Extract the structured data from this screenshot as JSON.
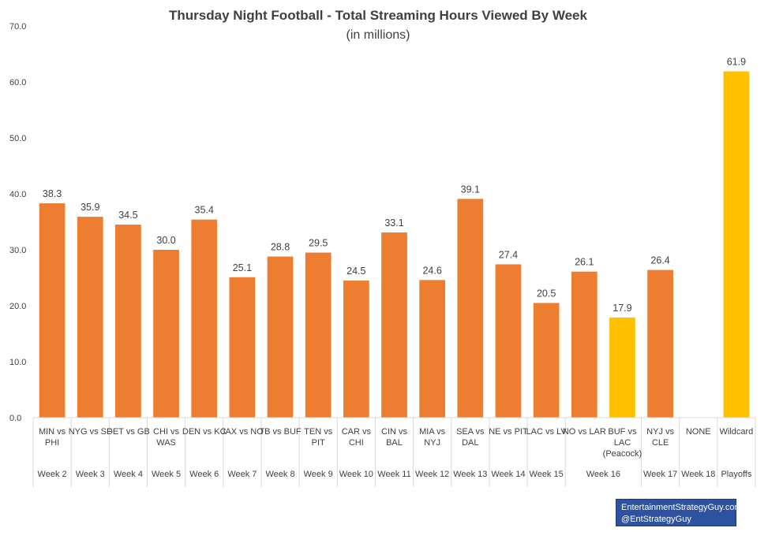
{
  "chart_data": {
    "type": "bar",
    "title": "Thursday Night Football - Total Streaming Hours Viewed By Week",
    "subtitle": "(in millions)",
    "ylim": [
      0,
      70
    ],
    "yticks": [
      "0.0",
      "10.0",
      "20.0",
      "30.0",
      "40.0",
      "50.0",
      "60.0",
      "70.0"
    ],
    "grid": false,
    "categories": [
      [
        "MIN vs",
        "PHI"
      ],
      [
        "NYG vs SF"
      ],
      [
        "DET vs GB"
      ],
      [
        "CHI vs",
        "WAS"
      ],
      [
        "DEN vs KC"
      ],
      [
        "JAX vs NO"
      ],
      [
        "TB vs BUF"
      ],
      [
        "TEN vs",
        "PIT"
      ],
      [
        "CAR vs",
        "CHI"
      ],
      [
        "CIN vs",
        "BAL"
      ],
      [
        "MIA vs",
        "NYJ"
      ],
      [
        "SEA vs",
        "DAL"
      ],
      [
        "NE vs PIT"
      ],
      [
        "LAC vs LV"
      ],
      [
        "NO vs LAR"
      ],
      [
        "BUF vs",
        "LAC",
        "(Peacock)"
      ],
      [
        "NYJ vs",
        "CLE"
      ],
      [
        "NONE"
      ],
      [
        "Wildcard"
      ]
    ],
    "values": [
      38.3,
      35.9,
      34.5,
      30.0,
      35.4,
      25.1,
      28.8,
      29.5,
      24.5,
      33.1,
      24.6,
      39.1,
      27.4,
      20.5,
      26.1,
      17.9,
      26.4,
      null,
      61.9
    ],
    "labels": [
      "38.3",
      "35.9",
      "34.5",
      "30.0",
      "35.4",
      "25.1",
      "28.8",
      "29.5",
      "24.5",
      "33.1",
      "24.6",
      "39.1",
      "27.4",
      "20.5",
      "26.1",
      "17.9",
      "26.4",
      "",
      "61.9"
    ],
    "highlight": [
      false,
      false,
      false,
      false,
      false,
      false,
      false,
      false,
      false,
      false,
      false,
      false,
      false,
      false,
      false,
      true,
      false,
      false,
      true
    ],
    "week_groups": [
      {
        "label": "Week 2",
        "start": 0,
        "end": 0
      },
      {
        "label": "Week 3",
        "start": 1,
        "end": 1
      },
      {
        "label": "Week 4",
        "start": 2,
        "end": 2
      },
      {
        "label": "Week 5",
        "start": 3,
        "end": 3
      },
      {
        "label": "Week 6",
        "start": 4,
        "end": 4
      },
      {
        "label": "Week 7",
        "start": 5,
        "end": 5
      },
      {
        "label": "Week 8",
        "start": 6,
        "end": 6
      },
      {
        "label": "Week 9",
        "start": 7,
        "end": 7
      },
      {
        "label": "Week 10",
        "start": 8,
        "end": 8
      },
      {
        "label": "Week 11",
        "start": 9,
        "end": 9
      },
      {
        "label": "Week 12",
        "start": 10,
        "end": 10
      },
      {
        "label": "Week 13",
        "start": 11,
        "end": 11
      },
      {
        "label": "Week 14",
        "start": 12,
        "end": 12
      },
      {
        "label": "Week 15",
        "start": 13,
        "end": 13
      },
      {
        "label": "Week 16",
        "start": 14,
        "end": 15
      },
      {
        "label": "Week 17",
        "start": 16,
        "end": 16
      },
      {
        "label": "Week 18",
        "start": 17,
        "end": 17
      },
      {
        "label": "Playoffs",
        "start": 18,
        "end": 18
      }
    ],
    "colors": {
      "bar": "#ed7d31",
      "highlight": "#ffc000",
      "axis": "#d9d9d9",
      "text": "#404040"
    }
  },
  "credit": {
    "line1": "EntertainmentStrategyGuy.com",
    "line2": "@EntStrategyGuy"
  }
}
